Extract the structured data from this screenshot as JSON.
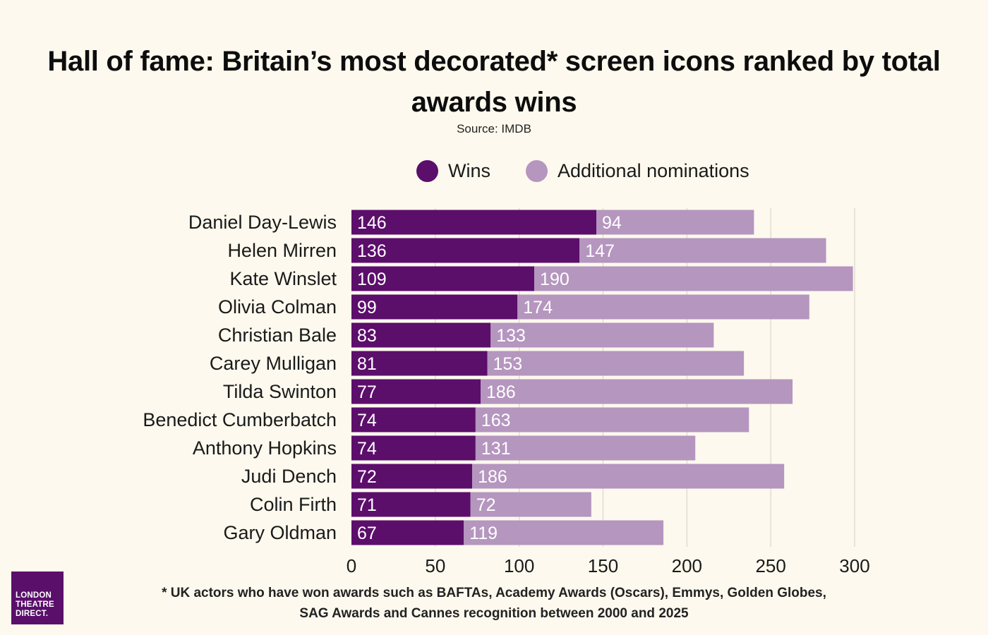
{
  "title": "Hall of fame: Britain’s most decorated* screen icons ranked by total awards wins",
  "source": "Source: IMDB",
  "legend": {
    "wins": "Wins",
    "nominations": "Additional nominations"
  },
  "colors": {
    "wins": "#5c0e6b",
    "nominations": "#b596bf",
    "grid": "#dcd6cc",
    "background": "#fdf9ee"
  },
  "footnote_line1": "* UK actors who have won awards such as BAFTAs, Academy Awards (Oscars), Emmys, Golden Globes,",
  "footnote_line2": "SAG Awards and Cannes recognition between 2000 and 2025",
  "logo": {
    "line1": "LONDON",
    "line2": "THEATRE",
    "line3": "DIRECT."
  },
  "chart_data": {
    "type": "bar",
    "orientation": "horizontal",
    "stacked": true,
    "title": "Hall of fame: Britain’s most decorated* screen icons ranked by total awards wins",
    "categories": [
      "Daniel Day-Lewis",
      "Helen Mirren",
      "Kate Winslet",
      "Olivia Colman",
      "Christian Bale",
      "Carey Mulligan",
      "Tilda Swinton",
      "Benedict Cumberbatch",
      "Anthony Hopkins",
      "Judi Dench",
      "Colin Firth",
      "Gary Oldman"
    ],
    "series": [
      {
        "name": "Wins",
        "values": [
          146,
          136,
          109,
          99,
          83,
          81,
          77,
          74,
          74,
          72,
          71,
          67
        ]
      },
      {
        "name": "Additional nominations",
        "values": [
          94,
          147,
          190,
          174,
          133,
          153,
          186,
          163,
          131,
          186,
          72,
          119
        ]
      }
    ],
    "xlim": [
      0,
      300
    ],
    "xticks": [
      0,
      50,
      100,
      150,
      200,
      250,
      300
    ],
    "grid": true,
    "legend_position": "top"
  }
}
